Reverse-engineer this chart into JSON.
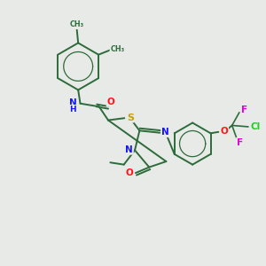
{
  "bg_color": "#e8eae8",
  "bond_color": "#2d6b3a",
  "atom_colors": {
    "N": "#1414ff",
    "O": "#ff1414",
    "S": "#c8a000",
    "F": "#e000e0",
    "Cl": "#22cc22",
    "H": "#1414ff"
  },
  "figsize": [
    3.0,
    3.0
  ],
  "dpi": 100
}
